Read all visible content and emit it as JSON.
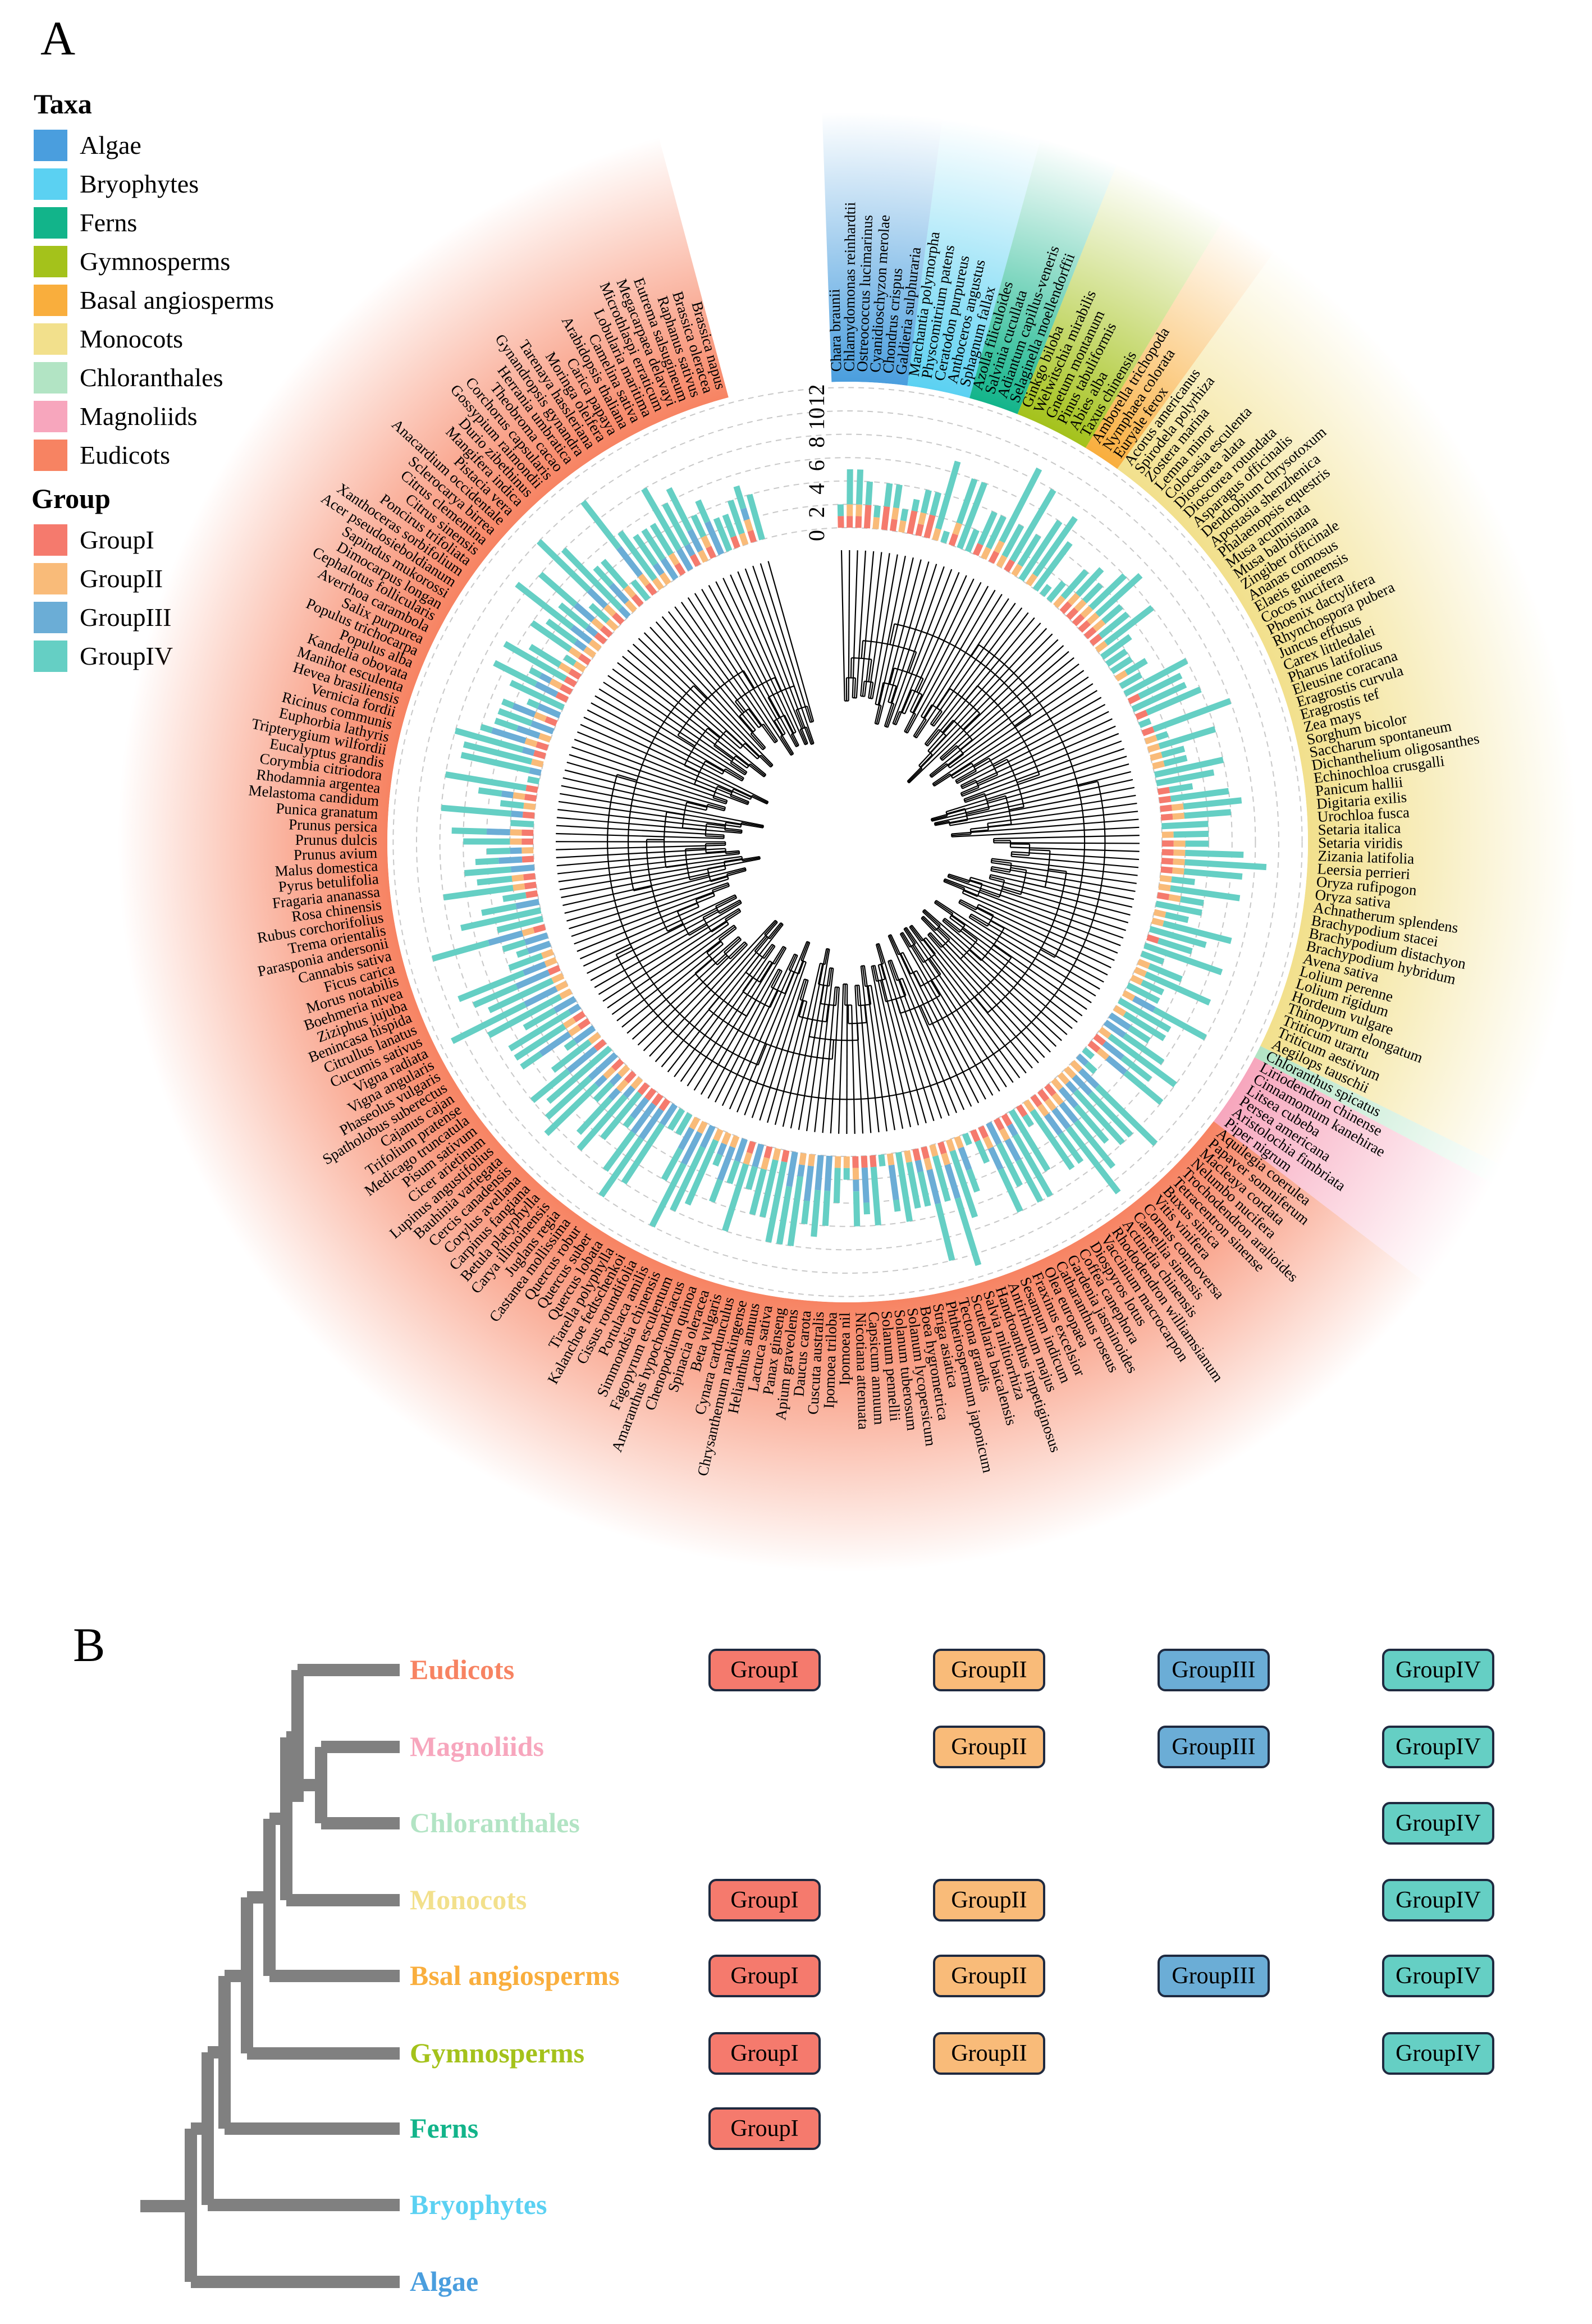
{
  "panels": {
    "a": "A",
    "b": "B"
  },
  "legend": {
    "taxa_title": "Taxa",
    "taxa": [
      {
        "label": "Algae",
        "color": "#4a9ede"
      },
      {
        "label": "Bryophytes",
        "color": "#5bd1f2"
      },
      {
        "label": "Ferns",
        "color": "#12b48a"
      },
      {
        "label": "Gymnosperms",
        "color": "#a4c21b"
      },
      {
        "label": "Basal angiosperms",
        "color": "#f9ae3d"
      },
      {
        "label": "Monocots",
        "color": "#f2e08c"
      },
      {
        "label": "Chloranthales",
        "color": "#b2e4c4"
      },
      {
        "label": "Magnoliids",
        "color": "#f7a6bd"
      },
      {
        "label": "Eudicots",
        "color": "#f78362"
      }
    ],
    "group_title": "Group",
    "groups": [
      {
        "label": "GroupI",
        "color": "#f57a6d"
      },
      {
        "label": "GroupII",
        "color": "#f9bb79"
      },
      {
        "label": "GroupIII",
        "color": "#6badd6"
      },
      {
        "label": "GroupIV",
        "color": "#65cfc4"
      }
    ]
  },
  "axis_ticks": [
    "0",
    "2",
    "4",
    "6",
    "8",
    "10",
    "12"
  ],
  "species": {
    "Algae": [
      "Chara braunii",
      "Chlamydomonas reinhardtii",
      "Ostreococcus lucimarinus",
      "Cyanidioschyzon merolae",
      "Chondrus crispus",
      "Galdieria sulphuraria"
    ],
    "Bryophytes": [
      "Marchantia polymorpha",
      "Physcomitrium patens",
      "Ceratodon purpureus",
      "Anthoceros angustus",
      "Sphagnum fallax"
    ],
    "Ferns": [
      "Azolla filiculoides",
      "Salvinia cucullata",
      "Adiantum capillus-veneris",
      "Selaginella moellendorffii"
    ],
    "Gymnosperms": [
      "Ginkgo biloba",
      "Welwitschia mirabilis",
      "Gnetum montanum",
      "Pinus tabuliformis",
      "Abies alba",
      "Taxus chinensis"
    ],
    "Basal angiosperms": [
      "Amborella trichopoda",
      "Nymphaea colorata",
      "Euryale ferox"
    ],
    "Monocots": [
      "Acorus americanus",
      "Spirodela polyrhiza",
      "Zostera marina",
      "Lemna minor",
      "Colocasia esculenta",
      "Dioscorea alata",
      "Dioscorea rotundata",
      "Asparagus officinalis",
      "Dendrobium chrysotoxum",
      "Apostasia shenzhenica",
      "Phalaenopsis equestris",
      "Musa acuminata",
      "Musa balbisiana",
      "Zingiber officinale",
      "Ananas comosus",
      "Elaeis guineensis",
      "Cocos nucifera",
      "Phoenix dactylifera",
      "Rhynchospora pubera",
      "Juncus effusus",
      "Carex littledalei",
      "Pharus latifolius",
      "Eleusine coracana",
      "Eragrostis curvula",
      "Eragrostis tef",
      "Zea mays",
      "Sorghum bicolor",
      "Saccharum spontaneum",
      "Dichanthelium oligosanthes",
      "Echinochloa crusgalli",
      "Panicum hallii",
      "Digitaria exilis",
      "Urochloa fusca",
      "Setaria italica",
      "Setaria viridis",
      "Zizania latifolia",
      "Leersia perrieri",
      "Oryza rufipogon",
      "Oryza sativa",
      "Achnatherum splendens",
      "Brachypodium stacei",
      "Brachypodium distachyon",
      "Brachypodium hybridum",
      "Avena sativa",
      "Lolium perenne",
      "Lolium rigidum",
      "Hordeum vulgare",
      "Thinopyrum elongatum",
      "Triticum urartu",
      "Triticum aestivum",
      "Aegilops tauschii"
    ],
    "Chloranthales": [
      "Chloranthus spicatus"
    ],
    "Magnoliids": [
      "Liriodendron chinense",
      "Cinnamomum kanehirae",
      "Litsea cubeba",
      "Persea americana",
      "Aristolochia fimbriata",
      "Piper nigrum"
    ],
    "Eudicots": [
      "Aquilegia coerulea",
      "Papaver somniferum",
      "Macleaya cordata",
      "Nelumbo nucifera",
      "Trochodendron aralioides",
      "Tetracentron sinense",
      "Buxus sinica",
      "Vitis vinifera",
      "Cornus controversa",
      "Camellia sinensis",
      "Actinidia chinensis",
      "Rhododendron williamsianum",
      "Vaccinium macrocarpon",
      "Diospyros lotus",
      "Coffea canephora",
      "Gardenia jasminoides",
      "Catharanthus roseus",
      "Olea europaea",
      "Fraxinus excelsior",
      "Sesamum indicum",
      "Antirrhinum majus",
      "Handroanthus impetiginosus",
      "Salvia miltiorrhiza",
      "Scutellaria baicalensis",
      "Tectona grandis",
      "Phtheirospermum japonicum",
      "Striga asiatica",
      "Boea hygrometrica",
      "Solanum lycopersicum",
      "Solanum tuberosum",
      "Solanum pennellii",
      "Capsicum annuum",
      "Nicotiana attenuata",
      "Ipomoea nil",
      "Ipomoea triloba",
      "Cuscuta australis",
      "Daucus carota",
      "Apium graveolens",
      "Panax ginseng",
      "Lactuca sativa",
      "Helianthus annuus",
      "Chrysanthemum nankingense",
      "Cynara cardunculus",
      "Beta vulgaris",
      "Spinacia oleracea",
      "Chenopodium quinoa",
      "Amaranthus hypochondriacus",
      "Fagopyrum esculentum",
      "Simmondsia chinensis",
      "Portulaca amilis",
      "Cissus rotundifolia",
      "Kalanchoe fedtschenkoi",
      "Tiarella polyphylla",
      "Quercus lobata",
      "Quercus suber",
      "Quercus robur",
      "Castanea mollissima",
      "Juglans regia",
      "Carya illinoinensis",
      "Betula platyphylla",
      "Carpinus fangiana",
      "Corylus avellana",
      "Cercis canadensis",
      "Bauhinia variegata",
      "Lupinus angustifolius",
      "Cicer arietinum",
      "Pisum sativum",
      "Medicago truncatula",
      "Trifolium pratense",
      "Cajanus cajan",
      "Spatholobus suberectus",
      "Phaseolus vulgaris",
      "Vigna angularis",
      "Vigna radiata",
      "Cucumis sativus",
      "Citrullus lanatus",
      "Benincasa hispida",
      "Ziziphus jujuba",
      "Boehmeria nivea",
      "Morus notabilis",
      "Ficus carica",
      "Cannabis sativa",
      "Parasponia andersonii",
      "Trema orientalis",
      "Rubus corchorifolius",
      "Rosa chinensis",
      "Fragaria ananassa",
      "Pyrus betulifolia",
      "Malus domestica",
      "Prunus avium",
      "Prunus dulcis",
      "Prunus persica",
      "Punica granatum",
      "Melastoma candidum",
      "Rhodamnia argentea",
      "Corymbia citriodora",
      "Eucalyptus grandis",
      "Tripterygium wilfordii",
      "Euphorbia lathyris",
      "Ricinus communis",
      "Vernicia fordii",
      "Hevea brasiliensis",
      "Manihot esculenta",
      "Kandelia obovata",
      "Populus alba",
      "Populus trichocarpa",
      "Salix purpurea",
      "Averrhoa carambola",
      "Cephalotus follicularis",
      "Dimocarpus longan",
      "Sapindus mukorossi",
      "Acer pseudosieboldianum",
      "Xanthoceras sorbifolium",
      "Poncirus trifoliata",
      "Citrus sinensis",
      "Citrus clementina",
      "Sclerocarya birrea",
      "Anacardium occidentale",
      "Pistacia vera",
      "Mangifera indica",
      "Durio zibethinus",
      "Gossypium raimondii",
      "Corchorus capsularis",
      "Theobroma cacao",
      "Herrania umbratica",
      "Gynandropsis gynandra",
      "Tarenaya hassleriana",
      "Moringa oleifera",
      "Carica papaya",
      "Arabidopsis thaliana",
      "Camelina sativa",
      "Lobularia maritima",
      "Microthlaspi erraticum",
      "Megacarpaea delavayi",
      "Eutrema salsugineum",
      "Raphanus sativus",
      "Brassica oleracea",
      "Brassica napus"
    ]
  },
  "panel_b": {
    "clades": [
      {
        "label": "Eudicots",
        "color": "#f78362",
        "groups": [
          "GroupI",
          "GroupII",
          "GroupIII",
          "GroupIV"
        ]
      },
      {
        "label": "Magnoliids",
        "color": "#f7a6bd",
        "groups": [
          "",
          "GroupII",
          "GroupIII",
          "GroupIV"
        ]
      },
      {
        "label": "Chloranthales",
        "color": "#b2e4c4",
        "groups": [
          "",
          "",
          "",
          "GroupIV"
        ]
      },
      {
        "label": "Monocots",
        "color": "#f2e08c",
        "groups": [
          "GroupI",
          "GroupII",
          "",
          "GroupIV"
        ]
      },
      {
        "label": "Bsal angiosperms",
        "color": "#f9ae3d",
        "groups": [
          "GroupI",
          "GroupII",
          "GroupIII",
          "GroupIV"
        ]
      },
      {
        "label": "Gymnosperms",
        "color": "#a4c21b",
        "groups": [
          "GroupI",
          "GroupII",
          "",
          "GroupIV"
        ]
      },
      {
        "label": "Ferns",
        "color": "#12b48a",
        "groups": [
          "GroupI",
          "",
          "",
          ""
        ]
      },
      {
        "label": "Bryophytes",
        "color": "#5bd1f2",
        "groups": [
          "",
          "",
          "",
          ""
        ]
      },
      {
        "label": "Algae",
        "color": "#4a9ede",
        "groups": [
          "",
          "",
          "",
          ""
        ]
      }
    ]
  }
}
